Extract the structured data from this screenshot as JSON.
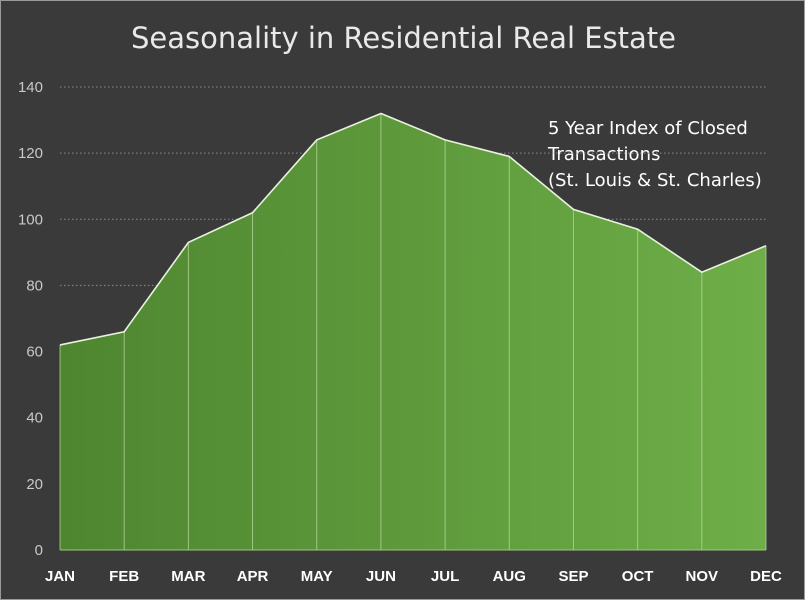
{
  "colors": {
    "background": "#3a3a3a",
    "area_left": "#4e8630",
    "area_right": "#6eae48",
    "line": "#e8f2dc",
    "grid": "#8a8a8a",
    "tick_text": "#c8c8c8",
    "category_text": "#ffffff",
    "title_text": "#e9e9e9"
  },
  "chart_data": {
    "type": "area",
    "title": "Seasonality in Residential Real Estate",
    "annotation": [
      "5 Year Index of  Closed",
      "Transactions",
      "(St. Louis & St. Charles)"
    ],
    "categories": [
      "JAN",
      "FEB",
      "MAR",
      "APR",
      "MAY",
      "JUN",
      "JUL",
      "AUG",
      "SEP",
      "OCT",
      "NOV",
      "DEC"
    ],
    "series": [
      {
        "name": "5 Year Index of Closed Transactions",
        "values": [
          62,
          66,
          93,
          102,
          124,
          132,
          124,
          119,
          103,
          97,
          84,
          92
        ]
      }
    ],
    "yticks": [
      0,
      20,
      40,
      60,
      80,
      100,
      120,
      140
    ],
    "ylim": [
      0,
      140
    ],
    "xlabel": "",
    "ylabel": "",
    "grid": true
  }
}
